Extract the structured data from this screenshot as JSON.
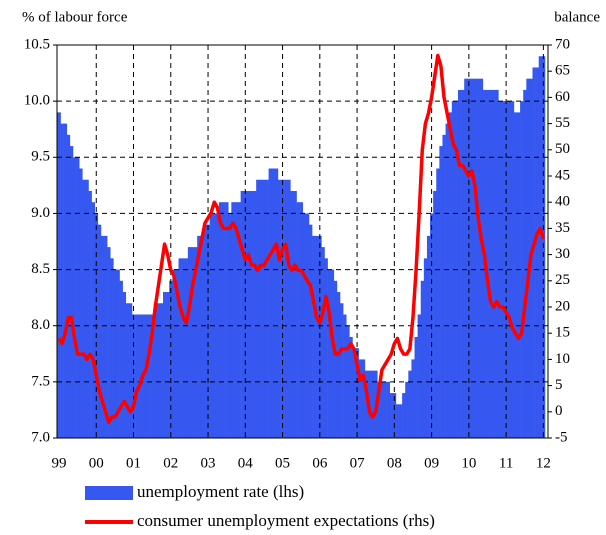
{
  "chart_data": {
    "type": "combo",
    "ylabel": "% of labour force",
    "y2label": "balance",
    "categories": [
      "99",
      null,
      null,
      null,
      null,
      null,
      null,
      null,
      null,
      null,
      null,
      null,
      "00",
      null,
      null,
      null,
      null,
      null,
      null,
      null,
      null,
      null,
      null,
      null,
      "01",
      null,
      null,
      null,
      null,
      null,
      null,
      null,
      null,
      null,
      null,
      null,
      "02",
      null,
      null,
      null,
      null,
      null,
      null,
      null,
      null,
      null,
      null,
      null,
      "03",
      null,
      null,
      null,
      null,
      null,
      null,
      null,
      null,
      null,
      null,
      null,
      "04",
      null,
      null,
      null,
      null,
      null,
      null,
      null,
      null,
      null,
      null,
      null,
      "05",
      null,
      null,
      null,
      null,
      null,
      null,
      null,
      null,
      null,
      null,
      null,
      "06",
      null,
      null,
      null,
      null,
      null,
      null,
      null,
      null,
      null,
      null,
      null,
      "07",
      null,
      null,
      null,
      null,
      null,
      null,
      null,
      null,
      null,
      null,
      null,
      "08",
      null,
      null,
      null,
      null,
      null,
      null,
      null,
      null,
      null,
      null,
      null,
      "09",
      null,
      null,
      null,
      null,
      null,
      null,
      null,
      null,
      null,
      null,
      null,
      "10",
      null,
      null,
      null,
      null,
      null,
      null,
      null,
      null,
      null,
      null,
      null,
      "11",
      null,
      null,
      null,
      null,
      null,
      null,
      null,
      null,
      null,
      null,
      null,
      "12"
    ],
    "series": [
      {
        "name": "unemployment rate (lhs)",
        "type": "bar",
        "color": "#3658f0",
        "values": [
          9.9,
          9.8,
          9.8,
          9.7,
          9.6,
          9.5,
          9.5,
          9.4,
          9.3,
          9.3,
          9.2,
          9.1,
          9.0,
          8.9,
          8.8,
          8.8,
          8.7,
          8.6,
          8.5,
          8.5,
          8.4,
          8.3,
          8.2,
          8.2,
          8.1,
          8.1,
          8.1,
          8.1,
          8.1,
          8.1,
          8.1,
          8.2,
          8.2,
          8.2,
          8.3,
          8.3,
          8.4,
          8.5,
          8.5,
          8.6,
          8.6,
          8.6,
          8.7,
          8.7,
          8.7,
          8.8,
          8.8,
          8.9,
          8.9,
          9.0,
          9.0,
          9.0,
          9.1,
          9.1,
          9.1,
          9.0,
          9.1,
          9.1,
          9.1,
          9.2,
          9.2,
          9.2,
          9.2,
          9.2,
          9.3,
          9.3,
          9.3,
          9.3,
          9.4,
          9.4,
          9.4,
          9.3,
          9.3,
          9.3,
          9.3,
          9.2,
          9.2,
          9.1,
          9.1,
          9.0,
          9.0,
          8.9,
          8.8,
          8.8,
          8.8,
          8.7,
          8.6,
          8.5,
          8.5,
          8.4,
          8.3,
          8.2,
          8.1,
          8.0,
          7.9,
          7.8,
          7.8,
          7.7,
          7.7,
          7.6,
          7.6,
          7.6,
          7.6,
          7.5,
          7.5,
          7.5,
          7.5,
          7.4,
          7.4,
          7.3,
          7.3,
          7.4,
          7.5,
          7.6,
          7.7,
          7.9,
          8.1,
          8.4,
          8.6,
          8.8,
          9.0,
          9.2,
          9.4,
          9.6,
          9.7,
          9.8,
          9.9,
          10.0,
          10.0,
          10.1,
          10.1,
          10.2,
          10.2,
          10.2,
          10.2,
          10.2,
          10.2,
          10.1,
          10.1,
          10.1,
          10.1,
          10.1,
          10.0,
          10.0,
          10.0,
          10.0,
          10.0,
          9.9,
          9.9,
          10.0,
          10.1,
          10.2,
          10.2,
          10.3,
          10.3,
          10.4,
          10.4
        ]
      },
      {
        "name": "consumer unemployment expectations (rhs)",
        "type": "line",
        "axis": "y2",
        "color": "#ff0000",
        "values": [
          14,
          13,
          15,
          18,
          18,
          14,
          11,
          11,
          11,
          10,
          11,
          10,
          7,
          4,
          2,
          0,
          -2,
          -1,
          -1,
          0,
          1,
          2,
          1,
          0,
          1,
          4,
          5,
          7,
          8,
          11,
          15,
          20,
          24,
          28,
          32,
          30,
          27,
          26,
          23,
          20,
          18,
          17,
          20,
          24,
          27,
          30,
          33,
          36,
          37,
          38,
          40,
          39,
          36,
          35,
          35,
          35,
          36,
          35,
          33,
          31,
          29,
          30,
          28,
          28,
          27,
          28,
          28,
          29,
          30,
          31,
          32,
          29,
          31,
          32,
          28,
          27,
          28,
          27,
          27,
          26,
          25,
          24,
          21,
          18,
          17,
          19,
          22,
          19,
          14,
          11,
          11,
          12,
          12,
          12,
          13,
          12,
          9,
          6,
          7,
          4,
          0,
          -1,
          0,
          4,
          8,
          9,
          10,
          11,
          13,
          14,
          12,
          11,
          11,
          12,
          18,
          27,
          38,
          50,
          55,
          57,
          60,
          64,
          68,
          66,
          60,
          57,
          54,
          51,
          50,
          47,
          47,
          46,
          45,
          46,
          43,
          37,
          33,
          30,
          25,
          21,
          20,
          21,
          20,
          20,
          19,
          18,
          16,
          15,
          14,
          15,
          20,
          25,
          30,
          32,
          34,
          35,
          33
        ]
      }
    ],
    "ylim": [
      7.0,
      10.5
    ],
    "yticks": [
      {
        "value": 7,
        "label": "7.0"
      },
      7.5,
      {
        "value": 8,
        "label": "8.0"
      },
      8.5,
      {
        "value": 9,
        "label": "9.0"
      },
      9.5,
      {
        "value": 10,
        "label": "10.0"
      },
      10.5
    ],
    "y2lim": [
      -5,
      70
    ],
    "y2ticks": [
      -5,
      0,
      5,
      10,
      15,
      20,
      25,
      30,
      35,
      40,
      45,
      50,
      55,
      60,
      65,
      70
    ],
    "grid": true
  }
}
